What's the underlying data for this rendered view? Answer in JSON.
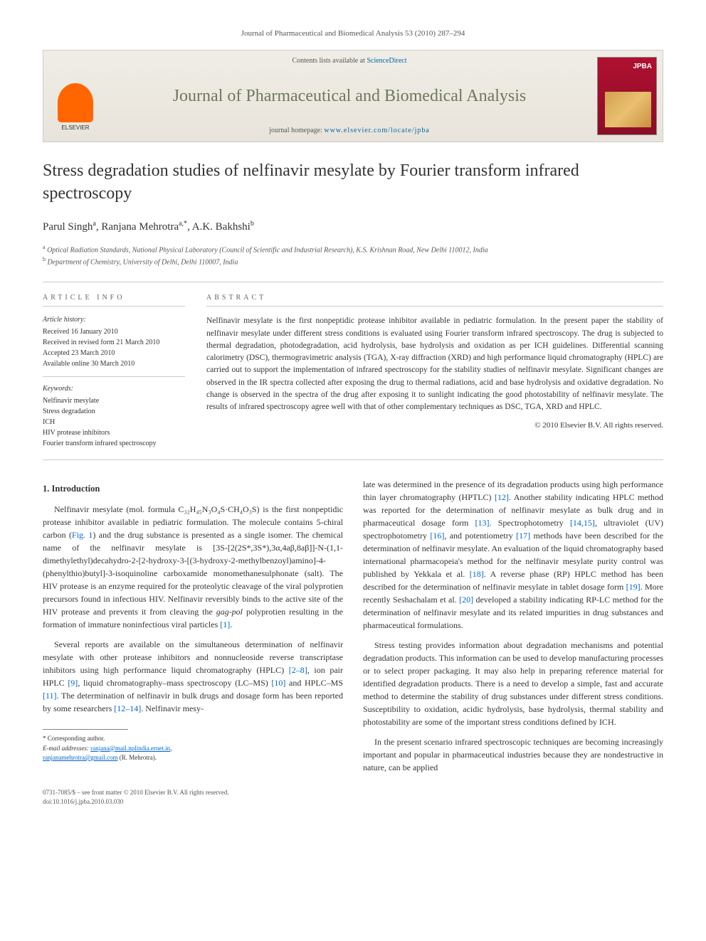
{
  "header": {
    "citation": "Journal of Pharmaceutical and Biomedical Analysis 53 (2010) 287–294"
  },
  "banner": {
    "contents_prefix": "Contents lists available at ",
    "contents_link": "ScienceDirect",
    "journal_name": "Journal of Pharmaceutical and Biomedical Analysis",
    "homepage_prefix": "journal homepage: ",
    "homepage_link": "www.elsevier.com/locate/jpba",
    "publisher": "ELSEVIER",
    "cover_label": "JPBA"
  },
  "article": {
    "title": "Stress degradation studies of nelfinavir mesylate by Fourier transform infrared spectroscopy",
    "authors_html": "Parul Singh<sup>a</sup>, Ranjana Mehrotra<sup>a,*</sup>, A.K. Bakhshi<sup>b</sup>",
    "affil_a": "Optical Radiation Standards, National Physical Laboratory (Council of Scientific and Industrial Research), K.S. Krishnan Road, New Delhi 110012, India",
    "affil_b": "Department of Chemistry, University of Delhi, Delhi 110007, India"
  },
  "info": {
    "heading": "article info",
    "history_label": "Article history:",
    "received": "Received 16 January 2010",
    "revised": "Received in revised form 21 March 2010",
    "accepted": "Accepted 23 March 2010",
    "online": "Available online 30 March 2010",
    "keywords_label": "Keywords:",
    "keywords": [
      "Nelfinavir mesylate",
      "Stress degradation",
      "ICH",
      "HIV protease inhibitors",
      "Fourier transform infrared spectroscopy"
    ]
  },
  "abstract": {
    "heading": "abstract",
    "text": "Nelfinavir mesylate is the first nonpeptidic protease inhibitor available in pediatric formulation. In the present paper the stability of nelfinavir mesylate under different stress conditions is evaluated using Fourier transform infrared spectroscopy. The drug is subjected to thermal degradation, photodegradation, acid hydrolysis, base hydrolysis and oxidation as per ICH guidelines. Differential scanning calorimetry (DSC), thermogravimetric analysis (TGA), X-ray diffraction (XRD) and high performance liquid chromatography (HPLC) are carried out to support the implementation of infrared spectroscopy for the stability studies of nelfinavir mesylate. Significant changes are observed in the IR spectra collected after exposing the drug to thermal radiations, acid and base hydrolysis and oxidative degradation. No change is observed in the spectra of the drug after exposing it to sunlight indicating the good photostability of nelfinavir mesylate. The results of infrared spectroscopy agree well with that of other complementary techniques as DSC, TGA, XRD and HPLC.",
    "copyright": "© 2010 Elsevier B.V. All rights reserved."
  },
  "body": {
    "section1_heading": "1. Introduction",
    "p1": "Nelfinavir mesylate (mol. formula C₃₂H₄₅N₃O₄S·CH₄O₃S) is the first nonpeptidic protease inhibitor available in pediatric formulation. The molecule contains 5-chiral carbon (Fig. 1) and the drug substance is presented as a single isomer. The chemical name of the nelfinavir mesylate is [3S-[2(2S*,3S*),3α,4aβ,8aβ]]-N-(1,1-dimethylethyl)decahydro-2-[2-hydroxy-3-[(3-hydroxy-2-methylbenzoyl)amino]-4-(phenylthio)butyl]-3-isoquinoline carboxamide monomethanesulphonate (salt). The HIV protease is an enzyme required for the proteolytic cleavage of the viral polyprotien precursors found in infectious HIV. Nelfinavir reversibly binds to the active site of the HIV protease and prevents it from cleaving the gag-pol polyprotien resulting in the formation of immature noninfectious viral particles [1].",
    "p2": "Several reports are available on the simultaneous determination of nelfinavir mesylate with other protease inhibitors and nonnucleoside reverse transcriptase inhibitors using high performance liquid chromatography (HPLC) [2–8], ion pair HPLC [9], liquid chromatography–mass spectroscopy (LC–MS) [10] and HPLC–MS [11]. The determination of nelfinavir in bulk drugs and dosage form has been reported by some researchers [12–14]. Nelfinavir mesy-",
    "p3": "late was determined in the presence of its degradation products using high performance thin layer chromatography (HPTLC) [12]. Another stability indicating HPLC method was reported for the determination of nelfinavir mesylate as bulk drug and in pharmaceutical dosage form [13]. Spectrophotometry [14,15], ultraviolet (UV) spectrophotometry [16], and potentiometry [17] methods have been described for the determination of nelfinavir mesylate. An evaluation of the liquid chromatography based international pharmacopeia's method for the nelfinavir mesylate purity control was published by Yekkala et al. [18]. A reverse phase (RP) HPLC method has been described for the determination of nelfinavir mesylate in tablet dosage form [19]. More recently Seshachalam et al. [20] developed a stability indicating RP-LC method for the determination of nelfinavir mesylate and its related impurities in drug substances and pharmaceutical formulations.",
    "p4": "Stress testing provides information about degradation mechanisms and potential degradation products. This information can be used to develop manufacturing processes or to select proper packaging. It may also help in preparing reference material for identified degradation products. There is a need to develop a simple, fast and accurate method to determine the stability of drug substances under different stress conditions. Susceptibility to oxidation, acidic hydrolysis, base hydrolysis, thermal stability and photostability are some of the important stress conditions defined by ICH.",
    "p5": "In the present scenario infrared spectroscopic techniques are becoming increasingly important and popular in pharmaceutical industries because they are nondestructive in nature, can be applied"
  },
  "footnotes": {
    "corresponding": "* Corresponding author.",
    "email_label": "E-mail addresses:",
    "email1": "ranjana@mail.nplindia.ernet.in",
    "email2": "ranjanamehrotra@gmail.com",
    "email_suffix": "(R. Mehrotra)."
  },
  "footer": {
    "line1": "0731-7085/$ – see front matter © 2010 Elsevier B.V. All rights reserved.",
    "line2": "doi:10.1016/j.jpba.2010.03.030"
  },
  "colors": {
    "link": "#0066cc",
    "journal_green": "#6b7a5a",
    "banner_bg_top": "#f0ede6",
    "banner_bg_bot": "#e8e4db",
    "cover_red": "#b01030",
    "elsevier_orange": "#ff6600",
    "text": "#333333",
    "muted": "#555555",
    "border": "#cccccc"
  }
}
